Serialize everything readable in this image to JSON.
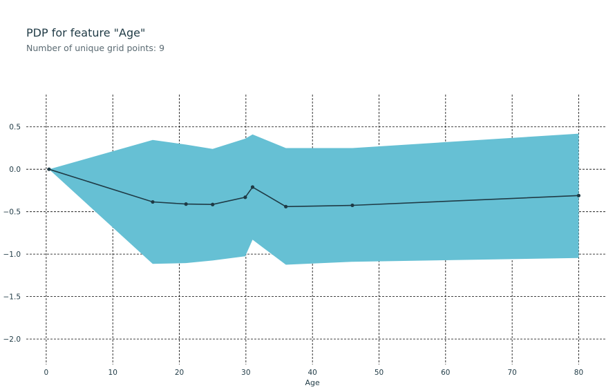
{
  "chart_data": {
    "type": "line",
    "title": "PDP for feature \"Age\"",
    "subtitle": "Number of unique grid points: 9",
    "xlabel": "Age",
    "ylabel": "",
    "xlim": [
      -3,
      84
    ],
    "ylim": [
      -2.3,
      0.88
    ],
    "x_ticks": [
      0,
      10,
      20,
      30,
      40,
      50,
      60,
      70,
      80
    ],
    "y_ticks": [
      0.5,
      0.0,
      -0.5,
      -1.0,
      -1.5,
      -2.0
    ],
    "y_tick_labels": [
      "0.5",
      "0.0",
      "−0.5",
      "−1.0",
      "−1.5",
      "−2.0"
    ],
    "grid": true,
    "x": [
      0.42,
      16,
      21,
      25,
      29.9,
      31,
      36,
      46,
      80
    ],
    "series": [
      {
        "values": [
          0,
          -0.385,
          -0.41,
          -0.415,
          -0.33,
          -0.21,
          -0.44,
          -0.425,
          -0.31
        ]
      }
    ],
    "band": {
      "upper": [
        0,
        0.345,
        0.29,
        0.24,
        0.36,
        0.41,
        0.25,
        0.25,
        0.42
      ],
      "lower": [
        0,
        -1.115,
        -1.105,
        -1.075,
        -1.025,
        -0.83,
        -1.125,
        -1.09,
        -1.045
      ]
    },
    "colors": {
      "line": "#1f3a45",
      "band": "#66c0d4",
      "grid": "#000000",
      "text": "#1f3a45"
    }
  }
}
